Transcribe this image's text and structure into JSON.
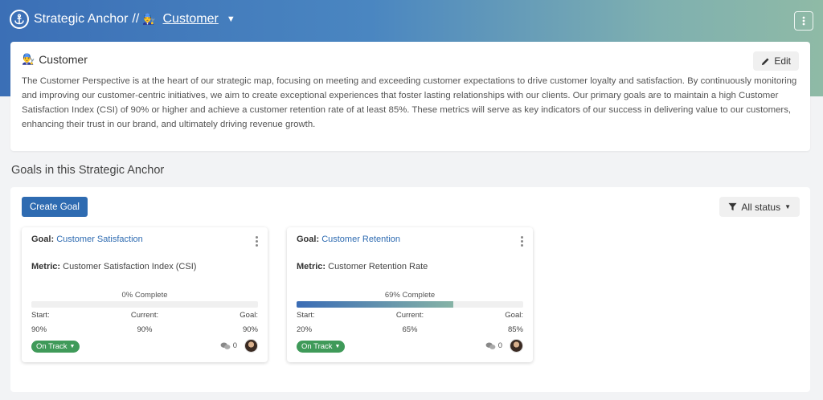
{
  "header": {
    "app_title": "Strategic Anchor",
    "separator": "//",
    "breadcrumb_emoji": "👨‍🔧",
    "breadcrumb_label": "Customer",
    "icons": [
      "anchor-icon",
      "chevron-down-icon",
      "kebab-menu-icon"
    ]
  },
  "anchor_card": {
    "emoji": "👨‍🔧",
    "title": "Customer",
    "edit_label": "Edit",
    "description": "The Customer Perspective is at the heart of our strategic map, focusing on meeting and exceeding customer expectations to drive customer loyalty and satisfaction. By continuously monitoring and improving our customer-centric initiatives, we aim to create exceptional experiences that foster lasting relationships with our clients. Our primary goals are to maintain a high Customer Satisfaction Index (CSI) of 90% or higher and achieve a customer retention rate of at least 85%. These metrics will serve as key indicators of our success in delivering value to our customers, enhancing their trust in our brand, and ultimately driving revenue growth."
  },
  "goals_section": {
    "title": "Goals in this Strategic Anchor",
    "create_label": "Create Goal",
    "filter_label": "All status"
  },
  "goals": [
    {
      "goal_prefix": "Goal:",
      "goal_name": "Customer Satisfaction",
      "metric_prefix": "Metric:",
      "metric_name": "Customer Satisfaction Index (CSI)",
      "progress_label": "0% Complete",
      "progress_fraction": 0,
      "start_label": "Start:",
      "current_label": "Current:",
      "goal_label": "Goal:",
      "start": "90%",
      "current": "90%",
      "goal": "90%",
      "status": "On Track",
      "comments": "0"
    },
    {
      "goal_prefix": "Goal:",
      "goal_name": "Customer Retention",
      "metric_prefix": "Metric:",
      "metric_name": "Customer Retention Rate",
      "progress_label": "69% Complete",
      "progress_fraction": 0.69,
      "start_label": "Start:",
      "current_label": "Current:",
      "goal_label": "Goal:",
      "start": "20%",
      "current": "65%",
      "goal": "85%",
      "status": "On Track",
      "comments": "0"
    }
  ]
}
